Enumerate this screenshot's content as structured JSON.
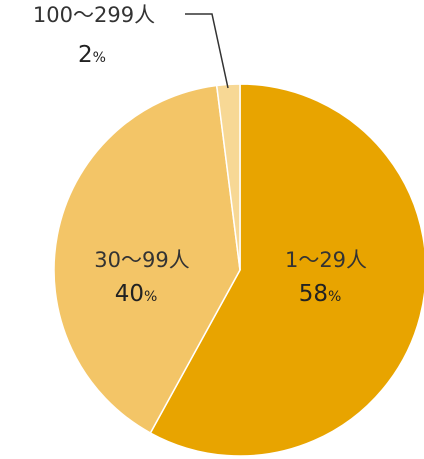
{
  "chart_data": {
    "type": "pie",
    "slices": [
      {
        "label": "1〜29人",
        "value": 58,
        "value_label": "58",
        "unit": "%",
        "color": "#E8A400"
      },
      {
        "label": "30〜99人",
        "value": 40,
        "value_label": "40",
        "unit": "%",
        "color": "#F3C567"
      },
      {
        "label": "100〜299人",
        "value": 2,
        "value_label": "2",
        "unit": "%",
        "color": "#F7D895"
      }
    ],
    "start_angle": "12 o'clock",
    "direction": "clockwise",
    "slice_border_color": "#ffffff"
  }
}
